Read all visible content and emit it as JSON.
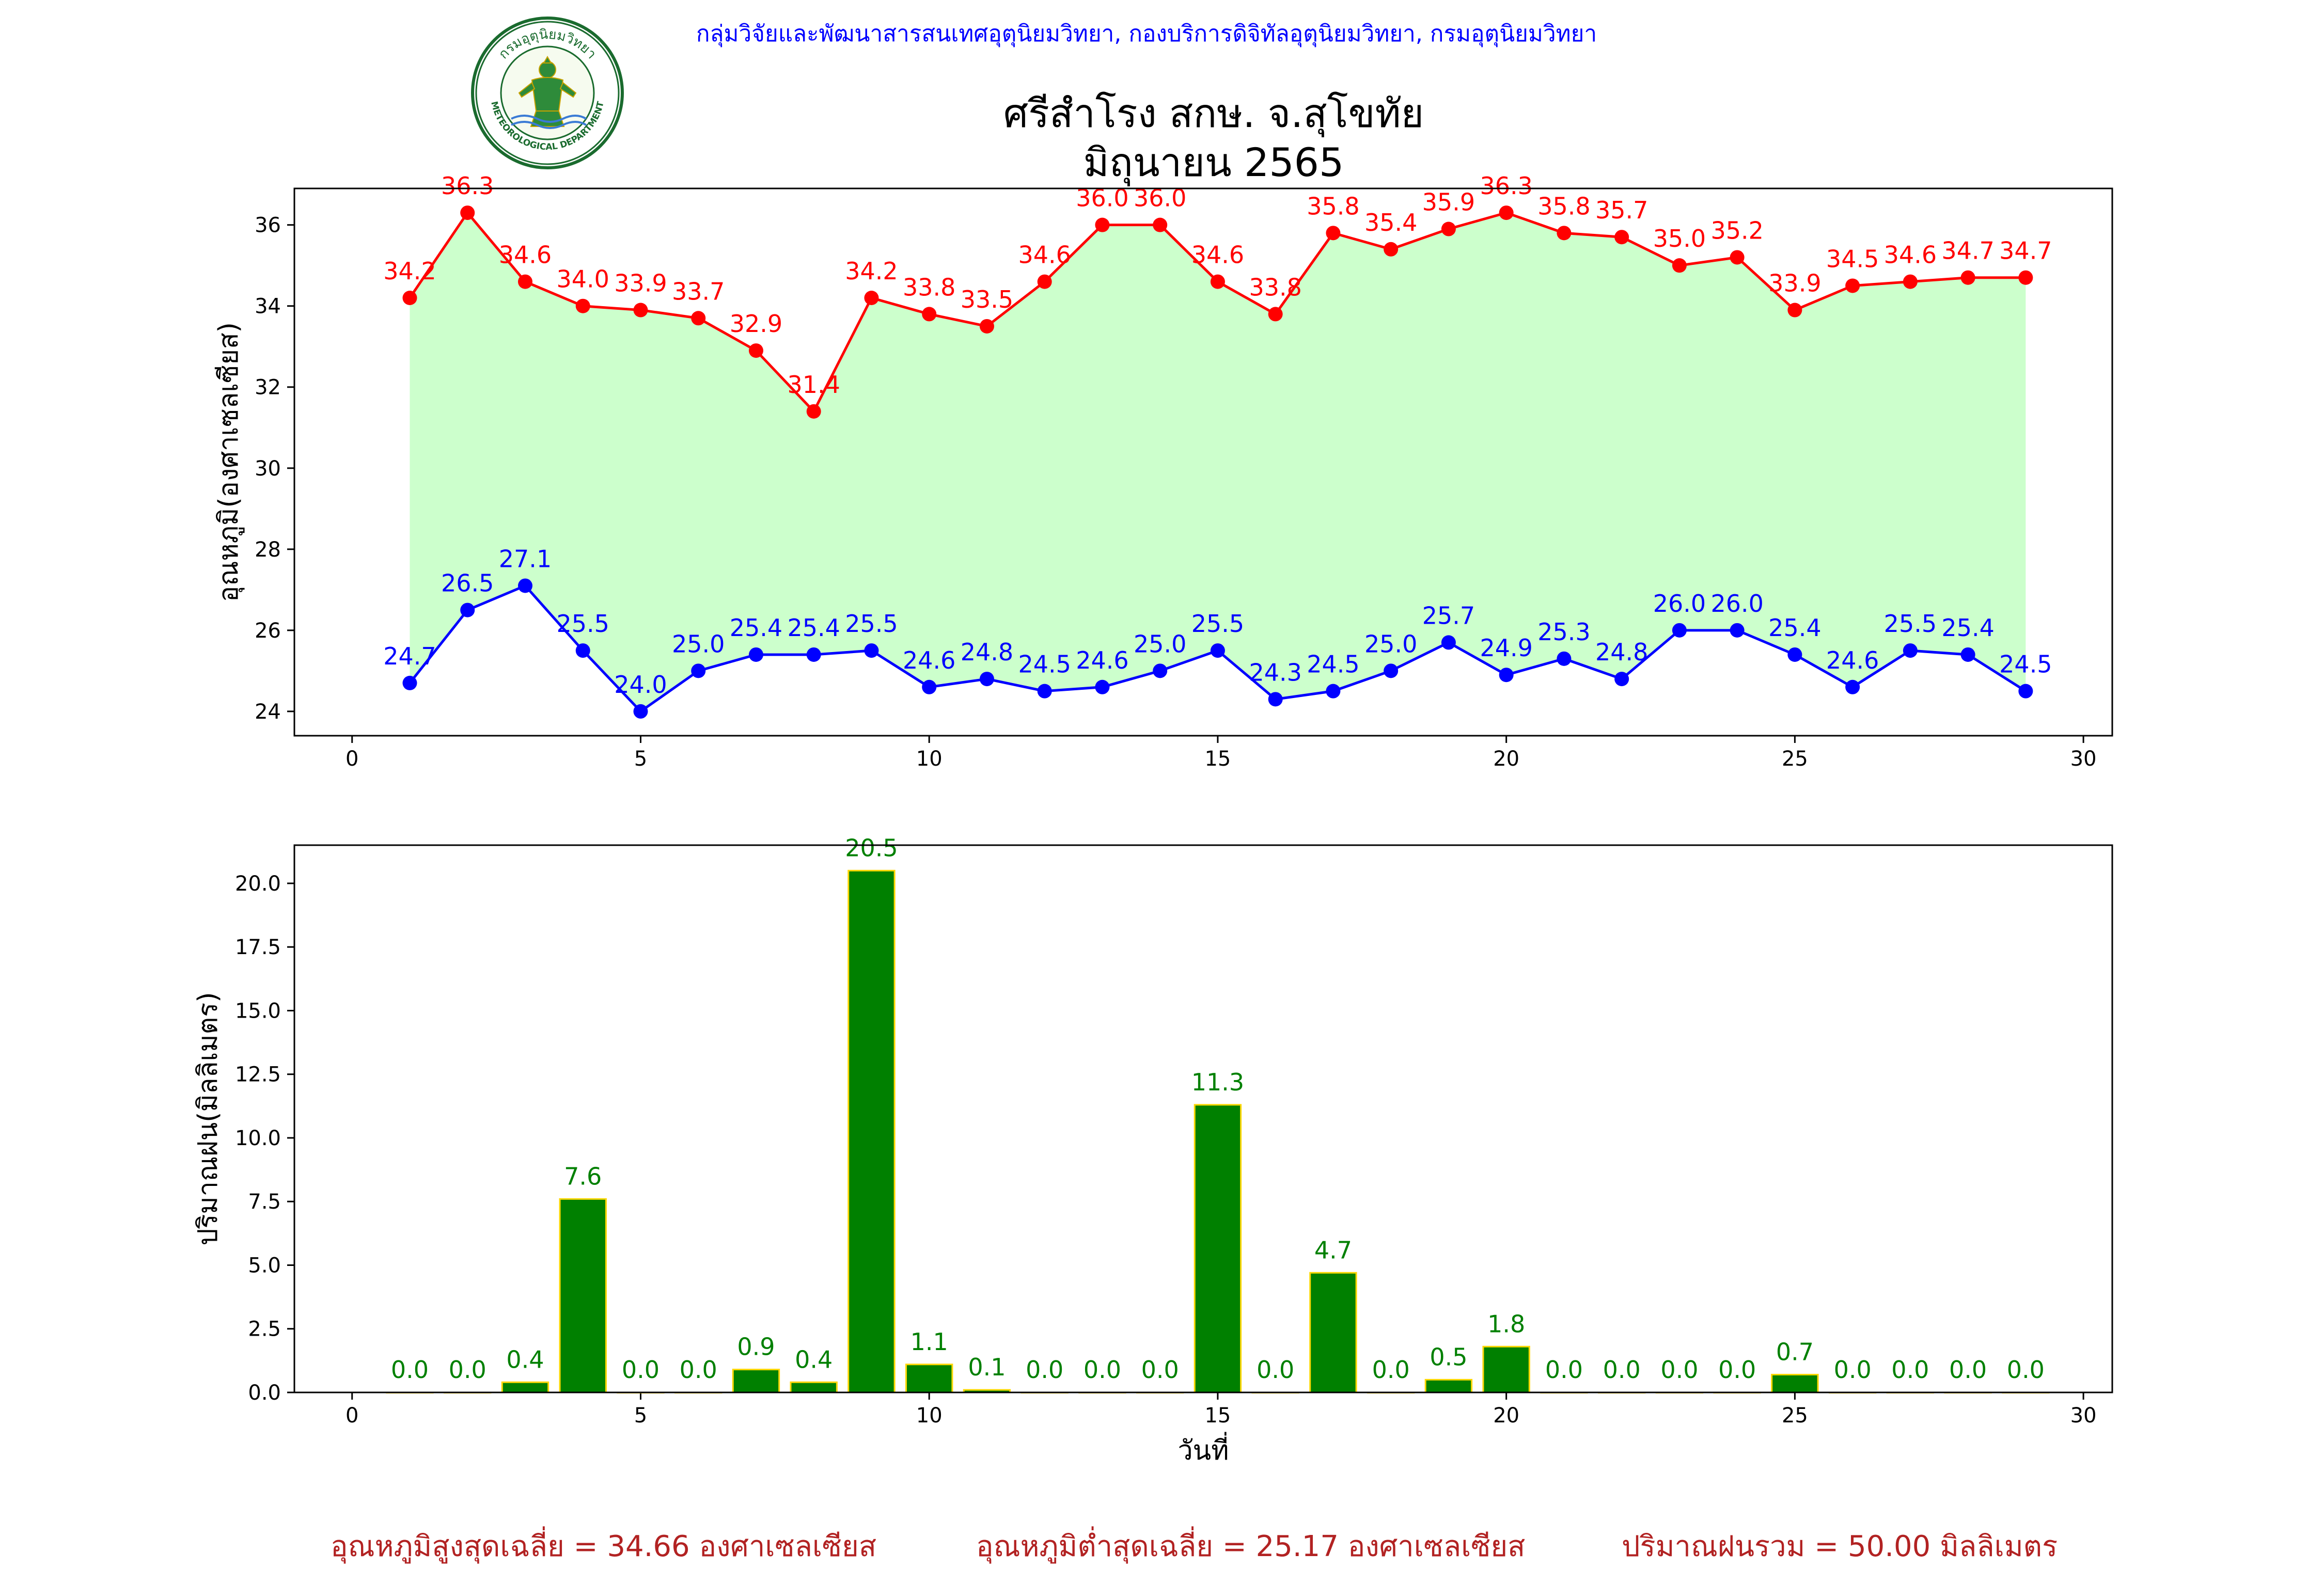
{
  "header": {
    "organization": "กลุ่มวิจัยและพัฒนาสารสนเทศอุตุนิยมวิทยา, กองบริการดิจิทัลอุตุนิยมวิทยา, กรมอุตุนิยมวิทยา",
    "title_line1": "ศรีสำโรง สกษ. จ.สุโขทัย",
    "title_line2": "มิถุนายน 2565",
    "logo_icon": "meteorological-department-seal-icon",
    "logo_text_top": "กรมอุตุนิยมวิทยา",
    "logo_text_bottom": "METEOROLOGICAL DEPARTMENT"
  },
  "summary": {
    "max_avg": "อุณหภูมิสูงสุดเฉลี่ย = 34.66 องศาเซลเซียส",
    "min_avg": "อุณหภูมิต่ำสุดเฉลี่ย = 25.17 องศาเซลเซียส",
    "rain_total": "ปริมาณฝนรวม = 50.00 มิลลิเมตร"
  },
  "colors": {
    "max_line": "#ff0000",
    "min_line": "#0000ff",
    "fill": "#ccffcc",
    "bar_fill": "#008000",
    "bar_edge": "#ffd700",
    "bar_label": "#008000"
  },
  "chart_data": [
    {
      "type": "line",
      "ylabel": "อุณหภูมิ(องศาเซลเซียส)",
      "xlabel": "",
      "xlim": [
        -1,
        30.5
      ],
      "ylim": [
        23.4,
        36.9
      ],
      "xticks": [
        0,
        5,
        10,
        15,
        20,
        25,
        30
      ],
      "yticks": [
        24,
        26,
        28,
        30,
        32,
        34,
        36
      ],
      "x": [
        1,
        2,
        3,
        4,
        5,
        6,
        7,
        8,
        9,
        10,
        11,
        12,
        13,
        14,
        15,
        16,
        17,
        18,
        19,
        20,
        21,
        22,
        23,
        24,
        25,
        26,
        27,
        28,
        29
      ],
      "series": [
        {
          "key": "max",
          "values": [
            34.2,
            36.3,
            34.6,
            34.0,
            33.9,
            33.7,
            32.9,
            31.4,
            34.2,
            33.8,
            33.5,
            34.6,
            36.0,
            36.0,
            34.6,
            33.8,
            35.8,
            35.4,
            35.9,
            36.3,
            35.8,
            35.7,
            35.0,
            35.2,
            33.9,
            34.5,
            34.6,
            34.7,
            34.7
          ]
        },
        {
          "key": "min",
          "values": [
            24.7,
            26.5,
            27.1,
            25.5,
            24.0,
            25.0,
            25.4,
            25.4,
            25.5,
            24.6,
            24.8,
            24.5,
            24.6,
            25.0,
            25.5,
            24.3,
            24.5,
            25.0,
            25.7,
            24.9,
            25.3,
            24.8,
            26.0,
            26.0,
            25.4,
            24.6,
            25.5,
            25.4,
            24.5
          ]
        }
      ]
    },
    {
      "type": "bar",
      "ylabel": "ปริมาณฝน(มิลลิเมตร)",
      "xlabel": "วันที่",
      "xlim": [
        -1,
        30.5
      ],
      "ylim": [
        0,
        21.5
      ],
      "xticks": [
        0,
        5,
        10,
        15,
        20,
        25,
        30
      ],
      "yticks": [
        0.0,
        2.5,
        5.0,
        7.5,
        10.0,
        12.5,
        15.0,
        17.5,
        20.0
      ],
      "x": [
        1,
        2,
        3,
        4,
        5,
        6,
        7,
        8,
        9,
        10,
        11,
        12,
        13,
        14,
        15,
        16,
        17,
        18,
        19,
        20,
        21,
        22,
        23,
        24,
        25,
        26,
        27,
        28,
        29
      ],
      "values": [
        0.0,
        0.0,
        0.4,
        7.6,
        0.0,
        0.0,
        0.9,
        0.4,
        20.5,
        1.1,
        0.1,
        0.0,
        0.0,
        0.0,
        11.3,
        0.0,
        4.7,
        0.0,
        0.5,
        1.8,
        0.0,
        0.0,
        0.0,
        0.0,
        0.7,
        0.0,
        0.0,
        0.0,
        0.0
      ]
    }
  ]
}
